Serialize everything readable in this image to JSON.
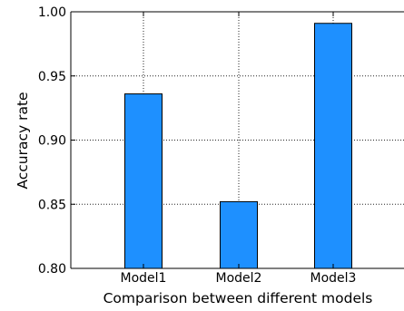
{
  "chart_data": {
    "type": "bar",
    "title": "",
    "xlabel": "Comparison between different models",
    "ylabel": "Accuracy rate",
    "categories": [
      "Model1",
      "Model2",
      "Model3"
    ],
    "values": [
      0.936,
      0.852,
      0.991
    ],
    "ylim": [
      0.8,
      1.0
    ],
    "yticks": [
      "0.80",
      "0.85",
      "0.90",
      "0.95",
      "1.00"
    ],
    "ytick_values": [
      0.8,
      0.85,
      0.9,
      0.95,
      1.0
    ],
    "grid": true,
    "bar_color": "#1e90ff",
    "edge_color": "#000000"
  }
}
